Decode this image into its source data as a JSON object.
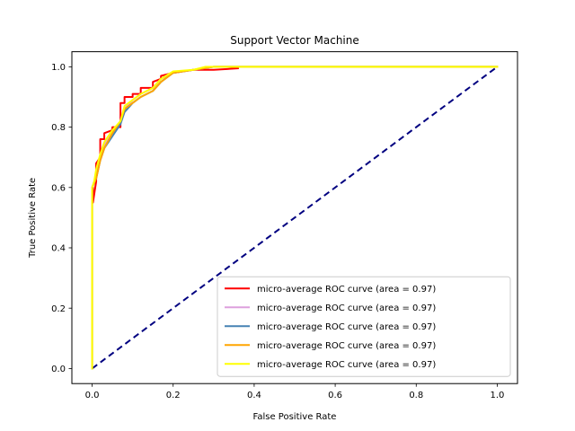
{
  "chart_data": {
    "type": "line",
    "title": "Support Vector Machine",
    "xlabel": "False Positive Rate",
    "ylabel": "True Positive Rate",
    "xlim": [
      -0.05,
      1.05
    ],
    "ylim": [
      -0.05,
      1.05
    ],
    "xticks": [
      "0.0",
      "0.2",
      "0.4",
      "0.6",
      "0.8",
      "1.0"
    ],
    "yticks": [
      "0.0",
      "0.2",
      "0.4",
      "0.6",
      "0.8",
      "1.0"
    ],
    "grid": false,
    "legend_position": "bottom-right",
    "chance_line": {
      "x": [
        0,
        1
      ],
      "y": [
        0,
        1
      ],
      "color": "#000080",
      "style": "dashed"
    },
    "series": [
      {
        "name": "micro-average ROC curve (area = 0.97)",
        "color": "#ff0000",
        "x": [
          0,
          0,
          0.002,
          0.002,
          0.01,
          0.01,
          0.02,
          0.02,
          0.03,
          0.03,
          0.05,
          0.05,
          0.07,
          0.07,
          0.08,
          0.08,
          0.1,
          0.1,
          0.12,
          0.12,
          0.15,
          0.15,
          0.17,
          0.17,
          0.2,
          0.25,
          0.3,
          0.36
        ],
        "y": [
          0,
          0.6,
          0.6,
          0.55,
          0.62,
          0.68,
          0.7,
          0.76,
          0.76,
          0.78,
          0.79,
          0.8,
          0.8,
          0.88,
          0.88,
          0.9,
          0.9,
          0.91,
          0.91,
          0.93,
          0.93,
          0.95,
          0.96,
          0.97,
          0.98,
          0.99,
          0.99,
          0.995
        ]
      },
      {
        "name": "micro-average ROC curve (area = 0.97)",
        "color": "#dda0dd",
        "x": [
          0,
          0,
          0.01,
          0.02,
          0.03,
          0.05,
          0.07,
          0.08,
          0.1,
          0.12,
          0.15,
          0.17,
          0.2,
          0.25,
          0.3,
          1.0
        ],
        "y": [
          0,
          0.6,
          0.64,
          0.7,
          0.74,
          0.78,
          0.82,
          0.86,
          0.89,
          0.91,
          0.93,
          0.96,
          0.98,
          0.99,
          1.0,
          1.0
        ]
      },
      {
        "name": "micro-average ROC curve (area = 0.97)",
        "color": "#4682b4",
        "x": [
          0,
          0,
          0.01,
          0.02,
          0.03,
          0.05,
          0.07,
          0.08,
          0.1,
          0.12,
          0.15,
          0.17,
          0.2,
          0.25,
          0.3,
          1.0
        ],
        "y": [
          0,
          0.6,
          0.63,
          0.69,
          0.73,
          0.77,
          0.81,
          0.85,
          0.88,
          0.9,
          0.92,
          0.95,
          0.98,
          0.99,
          1.0,
          1.0
        ]
      },
      {
        "name": "micro-average ROC curve (area = 0.97)",
        "color": "#ffa500",
        "x": [
          0,
          0,
          0.01,
          0.02,
          0.03,
          0.05,
          0.07,
          0.08,
          0.1,
          0.12,
          0.15,
          0.17,
          0.2,
          0.25,
          0.3,
          1.0
        ],
        "y": [
          0,
          0.6,
          0.63,
          0.69,
          0.73,
          0.78,
          0.82,
          0.86,
          0.88,
          0.9,
          0.92,
          0.95,
          0.98,
          0.99,
          1.0,
          1.0
        ]
      },
      {
        "name": "micro-average ROC curve (area = 0.97)",
        "color": "#ffff00",
        "x": [
          0,
          0,
          0.005,
          0.01,
          0.02,
          0.03,
          0.05,
          0.07,
          0.08,
          0.1,
          0.12,
          0.15,
          0.17,
          0.2,
          0.25,
          0.28,
          1.0
        ],
        "y": [
          0,
          0.6,
          0.62,
          0.66,
          0.71,
          0.75,
          0.79,
          0.82,
          0.87,
          0.89,
          0.91,
          0.93,
          0.96,
          0.985,
          0.99,
          1.0,
          1.0
        ]
      }
    ]
  }
}
